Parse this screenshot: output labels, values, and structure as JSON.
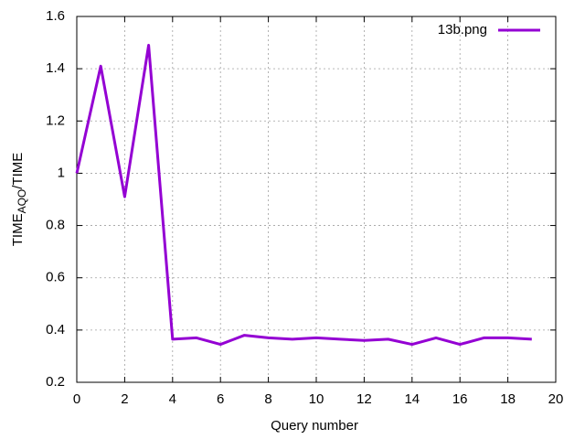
{
  "chart_data": {
    "type": "line",
    "xlabel": "Query number",
    "ylabel": [
      "TIME",
      "AQO",
      "/TIME"
    ],
    "x": [
      0,
      1,
      2,
      3,
      4,
      5,
      6,
      7,
      8,
      9,
      10,
      11,
      12,
      13,
      14,
      15,
      16,
      17,
      18,
      19
    ],
    "series": [
      {
        "name": "13b.png",
        "color": "#9400d3",
        "values": [
          1.0,
          1.41,
          0.91,
          1.49,
          0.365,
          0.37,
          0.345,
          0.38,
          0.37,
          0.365,
          0.37,
          0.365,
          0.36,
          0.365,
          0.345,
          0.37,
          0.345,
          0.37,
          0.37,
          0.365
        ]
      }
    ],
    "xlim": [
      0,
      20
    ],
    "xticks": [
      0,
      2,
      4,
      6,
      8,
      10,
      12,
      14,
      16,
      18,
      20
    ],
    "ylim": [
      0.2,
      1.6
    ],
    "yticks": [
      0.2,
      0.4,
      0.6,
      0.8,
      1,
      1.2,
      1.4,
      1.6
    ],
    "grid": true,
    "legend": "top-right"
  }
}
